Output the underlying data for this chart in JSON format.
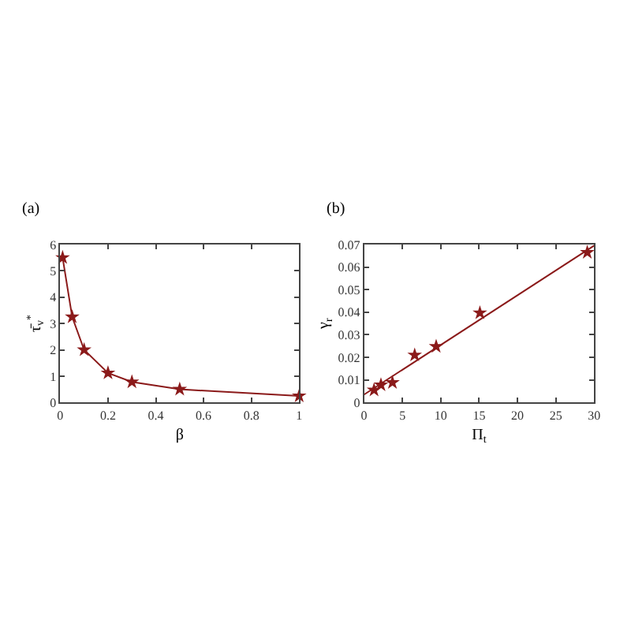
{
  "chart_data": [
    {
      "type": "line",
      "title": "(a)",
      "xlabel": "β",
      "ylabel": "τ̄$_{v}$$^{*}$",
      "x": [
        0.01,
        0.05,
        0.1,
        0.2,
        0.3,
        0.5,
        1
      ],
      "series": [
        {
          "color": "#8b1a1a",
          "values": [
            5.5,
            3.25,
            2.0,
            1.12,
            0.78,
            0.5,
            0.25
          ]
        }
      ],
      "xlim": [
        0,
        1
      ],
      "xticks": [
        0,
        0.2,
        0.4,
        0.6,
        0.8,
        1
      ],
      "ylim": [
        0,
        6
      ],
      "yticks": [
        0,
        1,
        2,
        3,
        4,
        5,
        6
      ],
      "marker": "star",
      "line_style": "solid"
    },
    {
      "type": "scatter",
      "title": "(b)",
      "xlabel": "Π$_{t}$",
      "ylabel": "γ$_{r}$",
      "series": [
        {
          "color": "#8b1a1a",
          "marker": "star",
          "x": [
            1.3,
            2.2,
            3.7,
            6.6,
            9.4,
            15.1,
            29.1
          ],
          "values": [
            0.0055,
            0.0078,
            0.0088,
            0.021,
            0.0248,
            0.0397,
            0.0665
          ]
        },
        {
          "type": "line",
          "marker": "none",
          "color": "#8b1a1a",
          "x": [
            0,
            30
          ],
          "values": [
            0.0035,
            0.0695
          ]
        }
      ],
      "xlim": [
        0,
        30
      ],
      "xticks": [
        0,
        5,
        10,
        15,
        20,
        25,
        30
      ],
      "ylim": [
        0,
        0.07
      ],
      "yticks": [
        0,
        0.01,
        0.02,
        0.03,
        0.04,
        0.05,
        0.06,
        0.07
      ]
    }
  ]
}
